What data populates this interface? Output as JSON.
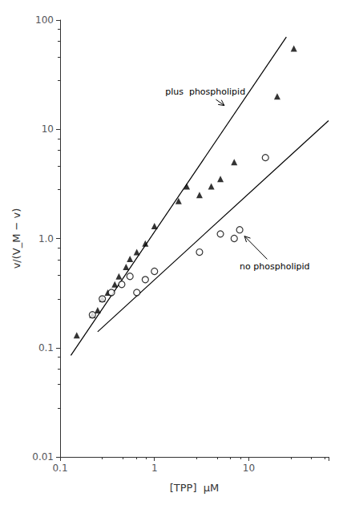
{
  "chart_data": {
    "type": "scatter",
    "log": true,
    "grid": false,
    "xlabel": "[TPP]  μM",
    "ylabel": "v/(V_M − v)",
    "xlim": [
      0.1,
      70
    ],
    "ylim": [
      0.01,
      100
    ],
    "xticks": [
      0.1,
      1,
      10
    ],
    "yticks": [
      0.01,
      0.1,
      {
        "value": 1,
        "label": "1.0"
      },
      10,
      100
    ],
    "series": [
      {
        "type": "line",
        "color": "#000000",
        "line_style": "solid",
        "x": [
          0.13,
          25.0
        ],
        "values": [
          0.085,
          70.0
        ]
      },
      {
        "type": "line",
        "color": "#000000",
        "line_style": "solid",
        "x": [
          0.25,
          70.0
        ],
        "values": [
          0.14,
          12.0
        ]
      },
      {
        "type": "scatter",
        "marker": "triangle",
        "color": "#000000",
        "x": [
          0.15,
          0.22,
          0.25,
          0.28,
          0.32,
          0.38,
          0.42,
          0.5,
          0.55,
          0.65,
          0.8,
          1.0,
          1.8,
          2.2,
          3.0,
          4.0,
          5.0,
          7.0,
          20.0,
          30.0
        ],
        "values": [
          0.13,
          0.2,
          0.22,
          0.28,
          0.32,
          0.38,
          0.45,
          0.55,
          0.65,
          0.75,
          0.9,
          1.3,
          2.2,
          3.0,
          2.5,
          3.0,
          3.5,
          5.0,
          20.0,
          55.0
        ]
      },
      {
        "type": "scatter",
        "marker": "open_circle",
        "color": "#000000",
        "x": [
          0.22,
          0.28,
          0.35,
          0.45,
          0.55,
          0.65,
          0.8,
          1.0,
          3.0,
          5.0,
          7.0,
          8.0,
          15.0
        ],
        "values": [
          0.2,
          0.28,
          0.32,
          0.38,
          0.45,
          0.32,
          0.42,
          0.5,
          0.75,
          1.1,
          1.0,
          1.2,
          5.5
        ]
      }
    ],
    "annotations": [
      {
        "text": "plus  phospholipid",
        "x": 1.3,
        "y": 22.0,
        "arrow_x": 5.5,
        "arrow_y": 16.5
      },
      {
        "text": "no phospholipid",
        "x": 8.0,
        "y": 0.55,
        "arrow_x": 9.0,
        "arrow_y": 1.05
      }
    ]
  }
}
